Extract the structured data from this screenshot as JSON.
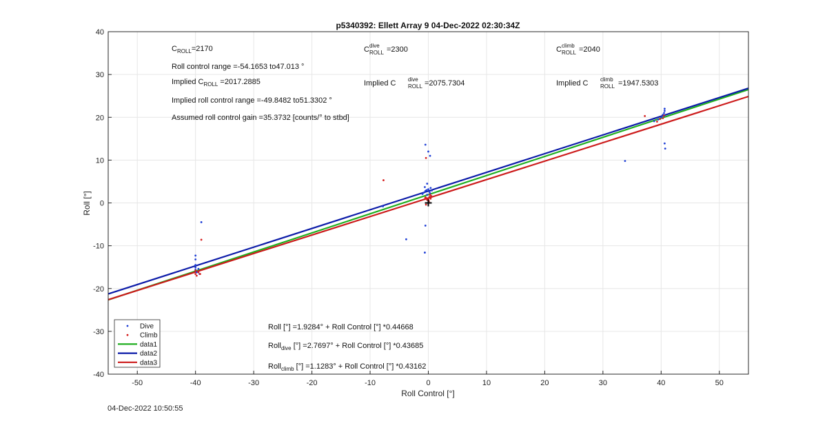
{
  "chart_data": {
    "type": "scatter",
    "title": "p5340392: Ellett Array 9 04-Dec-2022 02:30:34Z",
    "xlabel": "Roll Control [°]",
    "ylabel": "Roll [°]",
    "xlim": [
      -55,
      55
    ],
    "ylim": [
      -40,
      40
    ],
    "xticks": [
      -50,
      -40,
      -30,
      -20,
      -10,
      0,
      10,
      20,
      30,
      40,
      50
    ],
    "yticks": [
      -40,
      -30,
      -20,
      -10,
      0,
      10,
      20,
      30,
      40
    ],
    "grid": true,
    "legend_position": "bottom-left",
    "series": [
      {
        "name": "Dive",
        "kind": "points",
        "color": "#1f3fd6",
        "points": [
          [
            -40,
            -12.3
          ],
          [
            -40,
            -13.2
          ],
          [
            -40,
            -14.5
          ],
          [
            -40,
            -15.1
          ],
          [
            -40,
            -15.6
          ],
          [
            -39.8,
            -16.2
          ],
          [
            -39.5,
            -15.4
          ],
          [
            -39.3,
            -16.6
          ],
          [
            -39.0,
            -4.5
          ],
          [
            -7.8,
            -0.8
          ],
          [
            -3.8,
            -8.5
          ],
          [
            -0.6,
            -11.6
          ],
          [
            -0.5,
            -5.3
          ],
          [
            -0.5,
            13.6
          ],
          [
            0,
            12.0
          ],
          [
            0.3,
            11.0
          ],
          [
            -0.2,
            4.5
          ],
          [
            -1.0,
            2.1
          ],
          [
            -0.8,
            2.4
          ],
          [
            -0.5,
            2.8
          ],
          [
            -0.3,
            3.0
          ],
          [
            0.0,
            3.2
          ],
          [
            0.2,
            2.6
          ],
          [
            0.4,
            3.5
          ],
          [
            0.6,
            2.9
          ],
          [
            -0.6,
            3.7
          ],
          [
            0.3,
            2.2
          ],
          [
            -0.2,
            1.9
          ],
          [
            0.5,
            1.6
          ],
          [
            33.8,
            9.8
          ],
          [
            38.8,
            19.1
          ],
          [
            39.5,
            19.5
          ],
          [
            40.0,
            20.0
          ],
          [
            40.3,
            20.6
          ],
          [
            40.5,
            21.0
          ],
          [
            40.6,
            21.5
          ],
          [
            40.6,
            22.0
          ],
          [
            40.5,
            20.3
          ],
          [
            40.6,
            13.9
          ],
          [
            40.7,
            12.7
          ]
        ]
      },
      {
        "name": "Climb",
        "kind": "points",
        "color": "#d62020",
        "points": [
          [
            -40,
            -15.8
          ],
          [
            -40,
            -16.6
          ],
          [
            -39.8,
            -17.0
          ],
          [
            -39.5,
            -16.2
          ],
          [
            -39.2,
            -16.6
          ],
          [
            -39.0,
            -8.6
          ],
          [
            -7.7,
            5.3
          ],
          [
            -0.4,
            10.5
          ],
          [
            -0.5,
            1.3
          ],
          [
            -0.3,
            1.1
          ],
          [
            0,
            0.8
          ],
          [
            0.2,
            1.4
          ],
          [
            0.4,
            1.0
          ],
          [
            -0.2,
            0.7
          ],
          [
            0.5,
            1.6
          ],
          [
            0.1,
            0.4
          ],
          [
            0.3,
            1.9
          ],
          [
            -0.6,
            0.9
          ],
          [
            -0.4,
            -0.4
          ],
          [
            37.2,
            20.3
          ],
          [
            39.3,
            19.0
          ],
          [
            39.8,
            19.6
          ],
          [
            40.3,
            19.8
          ],
          [
            40.5,
            20.4
          ]
        ]
      },
      {
        "name": "data1",
        "kind": "line",
        "color": "#1fae1f",
        "intercept": 1.9284,
        "slope": 0.44668
      },
      {
        "name": "data2",
        "kind": "line",
        "color": "#0b1ba8",
        "intercept": 2.7697,
        "slope": 0.43685
      },
      {
        "name": "data3",
        "kind": "line",
        "color": "#cc1a1a",
        "intercept": 1.1283,
        "slope": 0.43162
      }
    ],
    "marker": {
      "x": 0,
      "y": 0,
      "symbol": "+"
    },
    "annotations": {
      "c_roll": {
        "base": "C",
        "sub": "ROLL",
        "value": "=2170"
      },
      "roll_range": "Roll control range =-54.1653 to47.013 °",
      "implied_c_roll": {
        "prefix": "Implied C",
        "sub": "ROLL",
        "value": " =2017.2885"
      },
      "implied_range": "Implied roll control range =-49.8482 to51.3302 °",
      "gain": "Assumed roll control gain =35.3732 [counts/° to stbd]",
      "c_dive": {
        "base": "C",
        "sup": "dive",
        "sub": "ROLL",
        "value": " =2300"
      },
      "implied_c_dive": {
        "prefix": "Implied C",
        "sup": "dive",
        "sub": "ROLL",
        "value": " =2075.7304"
      },
      "c_climb": {
        "base": "C",
        "sup": "climb",
        "sub": "ROLL",
        "value": " =2040"
      },
      "implied_c_climb": {
        "prefix": "Implied C",
        "sup": "climb",
        "sub": "ROLL",
        "value": " =1947.5303"
      },
      "eq_all": "Roll [°] =1.9284° + Roll Control [°] *0.44668",
      "eq_dive": {
        "base": "Roll",
        "sub": "dive",
        "rest": " [°] =2.7697° + Roll Control [°] *0.43685"
      },
      "eq_climb": {
        "base": "Roll",
        "sub": "climb",
        "rest": " [°] =1.1283° + Roll Control [°] *0.43162"
      }
    }
  },
  "footer": {
    "timestamp": "04-Dec-2022 10:50:55"
  }
}
